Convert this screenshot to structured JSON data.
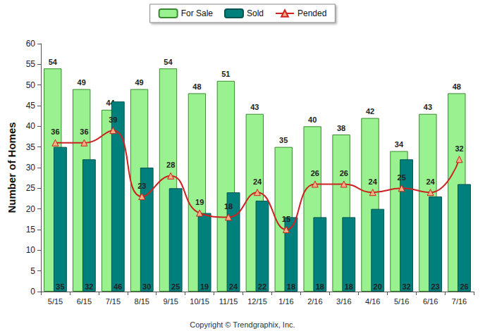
{
  "chart_data": {
    "type": "bar",
    "y_label": "Number of Homes",
    "annotations": [
      "Copyright © Trendgraphix, Inc."
    ],
    "categories": [
      "5/15",
      "6/15",
      "7/15",
      "8/15",
      "9/15",
      "10/15",
      "11/15",
      "12/15",
      "1/16",
      "2/16",
      "3/16",
      "4/16",
      "5/16",
      "6/16",
      "7/16"
    ],
    "series": [
      {
        "name": "For Sale",
        "type": "bar",
        "color": "#99f28f",
        "values": [
          54,
          49,
          44,
          49,
          54,
          48,
          51,
          43,
          35,
          40,
          38,
          42,
          34,
          43,
          48
        ]
      },
      {
        "name": "Sold",
        "type": "bar",
        "color": "#00807c",
        "values": [
          35,
          32,
          46,
          30,
          25,
          19,
          24,
          22,
          18,
          18,
          18,
          20,
          32,
          23,
          26
        ]
      },
      {
        "name": "Pended",
        "type": "line",
        "color": "#cc2222",
        "marker": "triangle",
        "line_style": "solid",
        "values": [
          36,
          36,
          39,
          23,
          28,
          19,
          18,
          24,
          15,
          26,
          26,
          24,
          25,
          24,
          32
        ]
      }
    ],
    "ylim": [
      0,
      60
    ],
    "yticks": [
      0,
      5,
      10,
      15,
      20,
      25,
      30,
      35,
      40,
      45,
      50,
      55,
      60
    ],
    "grid": false,
    "legend": "top",
    "data_labels": true
  }
}
